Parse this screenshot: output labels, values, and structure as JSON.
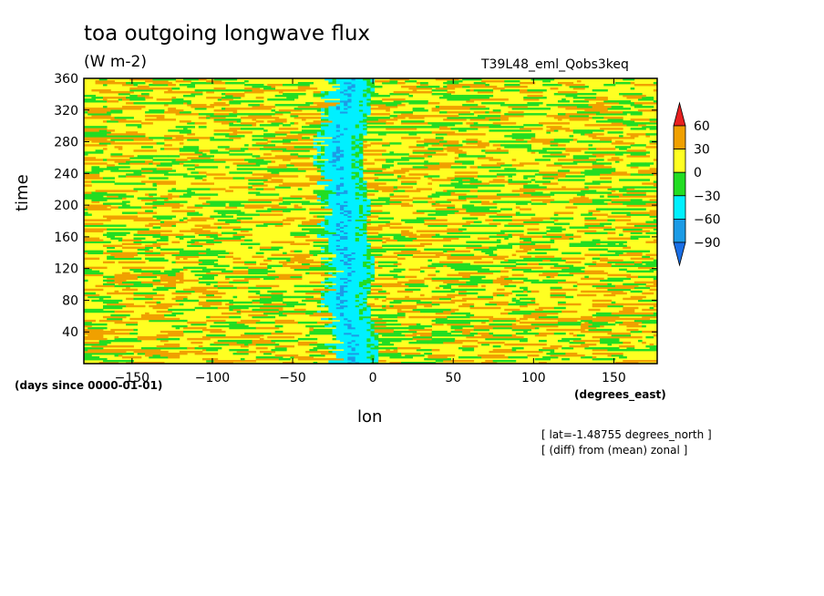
{
  "chart_data": {
    "type": "heatmap",
    "title": "toa outgoing longwave flux",
    "subtitle": "(W m-2)",
    "run_label": "T39L48_eml_Qobs3keq",
    "xlabel": "lon",
    "ylabel": "time",
    "x_units": "(degrees_east)",
    "y_units": "(days since 0000-01-01)",
    "annotations": [
      "[ lat=-1.48755 degrees_north ]",
      "[ (diff) from (mean) zonal ]"
    ],
    "xlim": [
      -180,
      177
    ],
    "ylim": [
      0,
      360
    ],
    "x_ticks": [
      -150,
      -100,
      -50,
      0,
      50,
      100,
      150
    ],
    "x_tick_labels": [
      "-150",
      "-100",
      "-50",
      "0",
      "50",
      "100",
      "150"
    ],
    "y_ticks": [
      40,
      80,
      120,
      160,
      200,
      240,
      280,
      320,
      360
    ],
    "y_tick_labels": [
      "40",
      "80",
      "120",
      "160",
      "200",
      "240",
      "280",
      "320",
      "360"
    ],
    "colorbar": {
      "levels": [
        -90,
        -60,
        -30,
        0,
        30,
        60
      ],
      "labels": [
        "-90",
        "-60",
        "-30",
        "0",
        "30",
        "60"
      ],
      "colors": [
        "#1a6fe6",
        "#1c9be6",
        "#00f0ff",
        "#22dd22",
        "#ffff22",
        "#f0a000",
        "#e82020"
      ]
    },
    "field": {
      "description_values": "diff from zonal mean; background mostly 0 to 30 with streaks of -30 to 0 and 30 to 60; a band of -60 to -30 (locally below -60) near lon -20 to -10 through all times",
      "minimum_band": [
        {
          "time": 0,
          "lon": -12
        },
        {
          "time": 40,
          "lon": -14
        },
        {
          "time": 80,
          "lon": -20
        },
        {
          "time": 120,
          "lon": -14
        },
        {
          "time": 160,
          "lon": -20
        },
        {
          "time": 200,
          "lon": -18
        },
        {
          "time": 240,
          "lon": -22
        },
        {
          "time": 280,
          "lon": -22
        },
        {
          "time": 320,
          "lon": -18
        },
        {
          "time": 360,
          "lon": -14
        }
      ],
      "background_range": [
        0,
        30
      ],
      "band_range": [
        -90,
        -30
      ]
    }
  }
}
